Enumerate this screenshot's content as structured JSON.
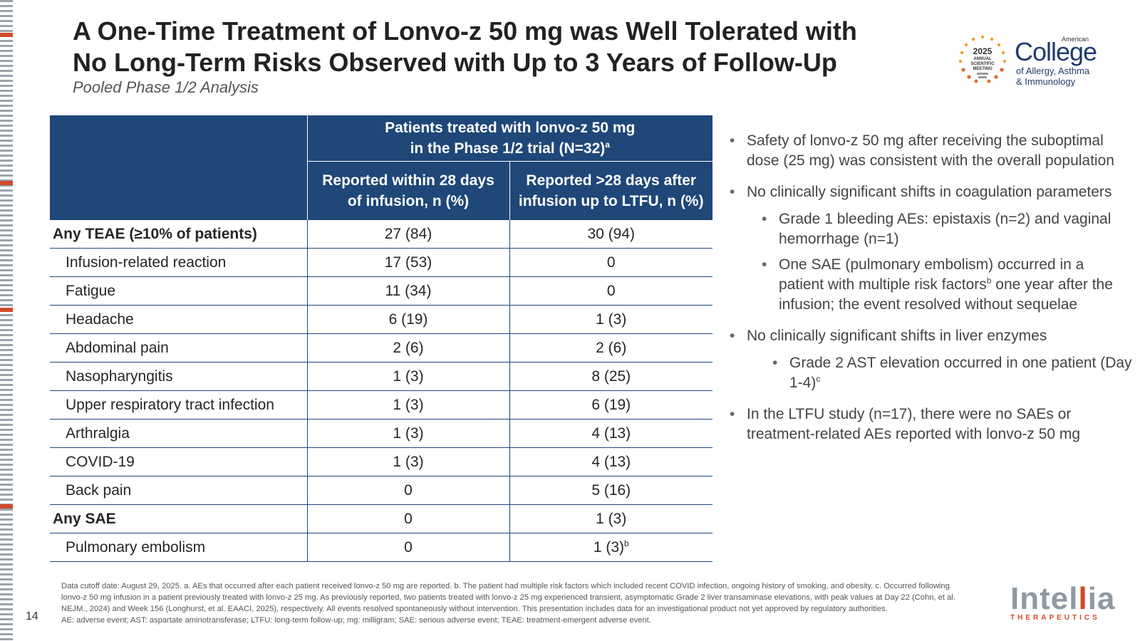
{
  "slide": {
    "page_number": "14",
    "title_line1": "A One-Time Treatment of Lonvo-z 50 mg was Well Tolerated with",
    "title_line2": "No Long-Term Risks Observed with Up to 3 Years of Follow-Up",
    "subtitle": "Pooled Phase 1/2 Analysis"
  },
  "logos": {
    "acaai": {
      "year": "2025",
      "meeting_line1": "ANNUAL",
      "meeting_line2": "SCIENTIFIC",
      "meeting_line3": "MEETING",
      "american": "American",
      "college": "College",
      "sub_line1": "of Allergy, Asthma",
      "sub_line2": "& Immunology"
    },
    "intellia": {
      "name_part1": "Intel",
      "name_part2": "ia",
      "tagline": "THERAPEUTICS"
    },
    "colors": {
      "acaai_blue": "#1f3c6c",
      "intellia_gray": "#8e99a4",
      "intellia_orange": "#d24a2a"
    }
  },
  "table": {
    "header_group_line1": "Patients treated with lonvo-z 50 mg",
    "header_group_line2": "in the Phase 1/2 trial (N=32)",
    "header_group_sup": "a",
    "col1_line1": "Reported within 28 days",
    "col1_line2": "of infusion, n (%)",
    "col2_line1": "Reported >28 days after",
    "col2_line2": "infusion up to LTFU, n (%)",
    "rows": [
      {
        "name": "Any TEAE (≥10% of patients)",
        "within": "27 (84)",
        "after": "30 (94)"
      },
      {
        "name": "Infusion-related reaction",
        "within": "17 (53)",
        "after": "0"
      },
      {
        "name": "Fatigue",
        "within": "11 (34)",
        "after": "0"
      },
      {
        "name": "Headache",
        "within": "6 (19)",
        "after": "1 (3)"
      },
      {
        "name": "Abdominal pain",
        "within": "2 (6)",
        "after": "2 (6)"
      },
      {
        "name": "Nasopharyngitis",
        "within": "1 (3)",
        "after": "8 (25)"
      },
      {
        "name": "Upper respiratory tract infection",
        "within": "1 (3)",
        "after": "6 (19)"
      },
      {
        "name": "Arthralgia",
        "within": "1 (3)",
        "after": "4 (13)"
      },
      {
        "name": "COVID-19",
        "within": "1 (3)",
        "after": "4 (13)"
      },
      {
        "name": "Back pain",
        "within": "0",
        "after": "5 (16)"
      },
      {
        "name": "Any SAE",
        "within": "0",
        "after": "1 (3)"
      },
      {
        "name": "Pulmonary embolism",
        "within": "0",
        "after": "1 (3)",
        "after_sup": "b"
      }
    ],
    "header_color": "#1f4778"
  },
  "bullets": {
    "b1": "Safety of lonvo-z 50 mg after receiving the suboptimal dose (25 mg) was consistent with the overall population",
    "b2": "No clinically significant shifts in coagulation parameters",
    "b2_1": "Grade 1 bleeding AEs: epistaxis (n=2) and vaginal hemorrhage (n=1)",
    "b2_2_pre": "One SAE (pulmonary embolism) occurred in a patient with multiple risk factors",
    "b2_2_sup": "b",
    "b2_2_post": " one year after the infusion; the event resolved without sequelae",
    "b3": "No clinically significant shifts in liver enzymes",
    "b3_1": "Grade 2 AST elevation occurred in one patient (Day 1-4)",
    "b3_1_sup": "c",
    "b4": "In the LTFU study (n=17), there were no SAEs or treatment-related AEs reported with lonvo-z 50 mg"
  },
  "footnote": {
    "text": "Data cutoff date: August 29, 2025. a. AEs that occurred after each patient received lonvo-z 50 mg are reported. b. The patient had multiple risk factors which included recent COVID infection, ongoing history of smoking, and obesity. c. Occurred following lonvo-z 50 mg infusion in a patient previously treated with lonvo-z 25 mg. As previously reported, two patients treated with lonvo-z 25 mg experienced transient, asymptomatic Grade 2 liver transaminase elevations, with peak values at Day 22 (Cohn, et al. NEJM., 2024) and Week 156 (Longhurst, et al. EAACI, 2025), respectively. All events resolved spontaneously without intervention. This presentation includes data for an investigational product not yet approved by regulatory authorities.",
    "abbrev": "AE: adverse event; AST: aspartate aminotransferase; LTFU: long-term follow-up; mg: milligram; SAE: serious adverse event; TEAE: treatment-emergent adverse event."
  }
}
